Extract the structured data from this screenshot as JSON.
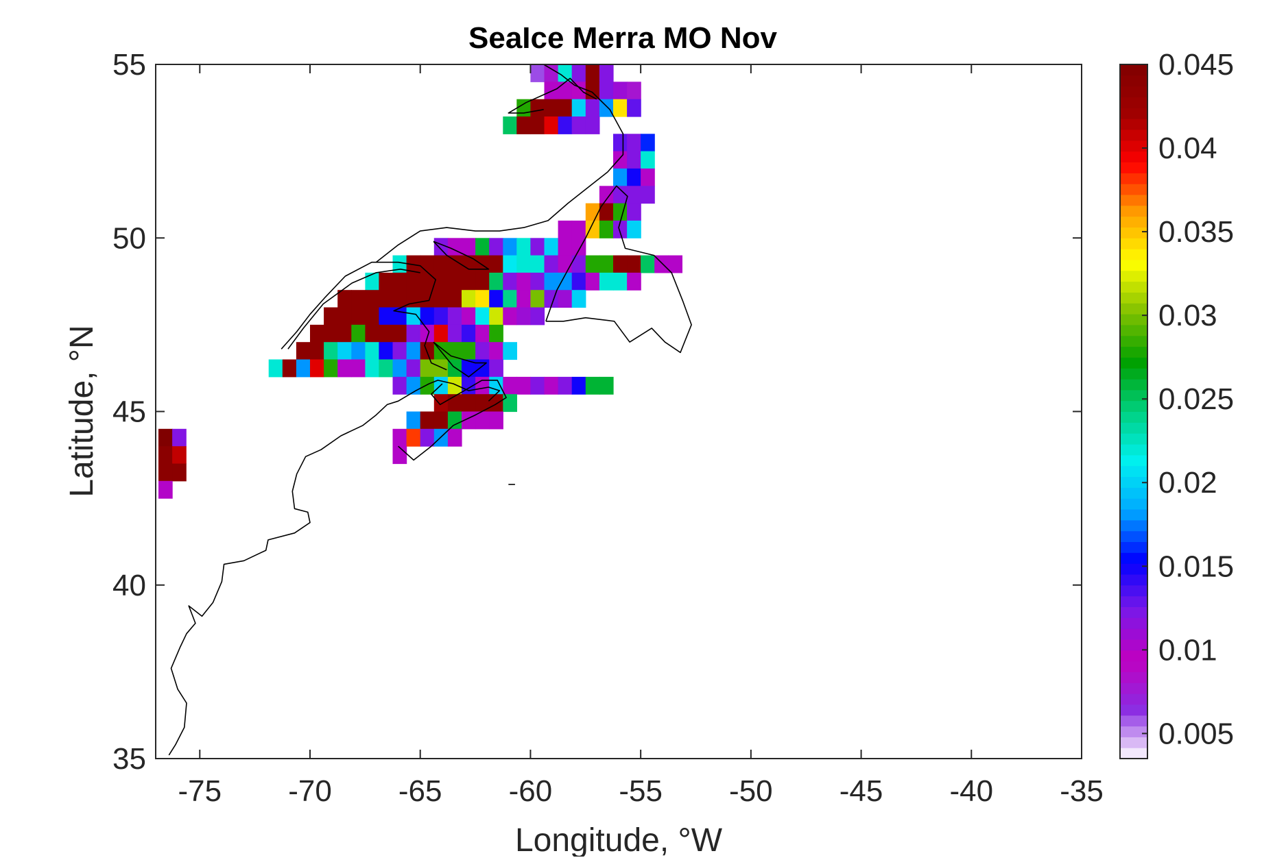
{
  "chart_data": {
    "type": "heatmap",
    "title": "SeaIce Merra MO Nov",
    "xlabel": "Longitude, °W",
    "ylabel": "Latitude, °N",
    "xlim": [
      -77,
      -35
    ],
    "ylim": [
      35,
      55
    ],
    "xticks": [
      -75,
      -70,
      -65,
      -60,
      -55,
      -50,
      -45,
      -40,
      -35
    ],
    "yticks": [
      35,
      40,
      45,
      50,
      55
    ],
    "colorbar": {
      "min": 0.0035,
      "max": 0.045,
      "ticks": [
        0.005,
        0.01,
        0.015,
        0.02,
        0.025,
        0.03,
        0.035,
        0.04,
        0.045
      ],
      "tick_labels": [
        "0.005",
        "0.01",
        "0.015",
        "0.02",
        "0.025",
        "0.03",
        "0.035",
        "0.04",
        "0.045"
      ],
      "colormap": [
        "#ffffff",
        "#8a2be2",
        "#c000c0",
        "#7a18e8",
        "#0000ff",
        "#00a8ff",
        "#00f0f0",
        "#00d080",
        "#00a000",
        "#80c000",
        "#ffff00",
        "#ffa000",
        "#ff0000",
        "#a00000",
        "#800000"
      ]
    },
    "cell_size_deg": [
      0.625,
      0.5
    ],
    "grid_cells_note": "rows: [lon_start, lat, [values...]] — each value occupies one 0.625° x 0.5° cell",
    "rows": [
      [
        -60.0,
        54.75,
        [
          0.006,
          0.008,
          0.022,
          0.012,
          0.044,
          0.012
        ]
      ],
      [
        -59.375,
        54.25,
        [
          0.01,
          0.01,
          0.009,
          0.044,
          0.012,
          0.011,
          0.008
        ]
      ],
      [
        -60.625,
        53.75,
        [
          0.028,
          0.044,
          0.044,
          0.044,
          0.02,
          0.012,
          0.018,
          0.034,
          0.013
        ]
      ],
      [
        -61.25,
        53.25,
        [
          0.025,
          0.044,
          0.044,
          0.04,
          0.014,
          0.012,
          0.012
        ]
      ],
      [
        -56.25,
        52.75,
        [
          0.013,
          0.012,
          0.016
        ]
      ],
      [
        -56.25,
        52.25,
        [
          0.01,
          0.012,
          0.022
        ]
      ],
      [
        -56.25,
        51.75,
        [
          0.018,
          0.015,
          0.01
        ]
      ],
      [
        -56.875,
        51.25,
        [
          0.01,
          0.012,
          0.012,
          0.012
        ]
      ],
      [
        -57.5,
        50.75,
        [
          0.036,
          0.044,
          0.028,
          0.012
        ]
      ],
      [
        -58.75,
        50.25,
        [
          0.01,
          0.01,
          0.035,
          0.028,
          0.012,
          0.02
        ]
      ],
      [
        -64.375,
        49.75,
        [
          0.012,
          0.01,
          0.01,
          0.026,
          0.012,
          0.018,
          0.022,
          0.012,
          0.02,
          0.01,
          0.01
        ]
      ],
      [
        -66.25,
        49.25,
        [
          0.022,
          0.044,
          0.044,
          0.044,
          0.044,
          0.044,
          0.044,
          0.044,
          0.021,
          0.022,
          0.022,
          0.012,
          0.01,
          0.012,
          0.028,
          0.028,
          0.044,
          0.044,
          0.025,
          0.01,
          0.01
        ]
      ],
      [
        -67.5,
        48.75,
        [
          0.022,
          0.044,
          0.044,
          0.044,
          0.044,
          0.044,
          0.044,
          0.044,
          0.044,
          0.025,
          0.012,
          0.01,
          0.012,
          0.018,
          0.018,
          0.014,
          0.01,
          0.022,
          0.022,
          0.01
        ]
      ],
      [
        -68.75,
        48.25,
        [
          0.044,
          0.044,
          0.044,
          0.044,
          0.044,
          0.044,
          0.044,
          0.044,
          0.044,
          0.032,
          0.034,
          0.015,
          0.024,
          0.01,
          0.03,
          0.012,
          0.011,
          0.02
        ]
      ],
      [
        -69.375,
        47.75,
        [
          0.044,
          0.044,
          0.044,
          0.044,
          0.015,
          0.015,
          0.02,
          0.015,
          0.014,
          0.012,
          0.01,
          0.021,
          0.032,
          0.01,
          0.011,
          0.012
        ]
      ],
      [
        -70.0,
        47.25,
        [
          0.044,
          0.044,
          0.044,
          0.028,
          0.044,
          0.044,
          0.044,
          0.012,
          0.01,
          0.04,
          0.012,
          0.014,
          0.01,
          0.028
        ]
      ],
      [
        -70.625,
        46.75,
        [
          0.044,
          0.044,
          0.024,
          0.02,
          0.018,
          0.022,
          0.015,
          0.012,
          0.018,
          0.044,
          0.028,
          0.028,
          0.028,
          0.012,
          0.01,
          0.02
        ]
      ],
      [
        -71.875,
        46.25,
        [
          0.022,
          0.044,
          0.018,
          0.04,
          0.028,
          0.01,
          0.01,
          0.022,
          0.024,
          0.018,
          0.012,
          0.03,
          0.03,
          0.026,
          0.015,
          0.015,
          0.012
        ]
      ],
      [
        -66.25,
        45.75,
        [
          0.012,
          0.018,
          0.028,
          0.02,
          0.032,
          0.014,
          0.01,
          0.02,
          0.01,
          0.01,
          0.012,
          0.01,
          0.012,
          0.015,
          0.026,
          0.026
        ]
      ],
      [
        -64.375,
        45.25,
        [
          0.042,
          0.044,
          0.044,
          0.044,
          0.044,
          0.025
        ]
      ],
      [
        -65.625,
        44.75,
        [
          0.018,
          0.044,
          0.044,
          0.026,
          0.01,
          0.01,
          0.01
        ]
      ],
      [
        -66.25,
        44.25,
        [
          0.01,
          0.038,
          0.012,
          0.018,
          0.01
        ]
      ],
      [
        -66.25,
        43.75,
        [
          0.01
        ]
      ],
      [
        -76.875,
        44.25,
        [
          0.045,
          0.012
        ]
      ],
      [
        -76.875,
        43.75,
        [
          0.044,
          0.041
        ]
      ],
      [
        -76.875,
        43.25,
        [
          0.044,
          0.044
        ]
      ],
      [
        -76.875,
        42.75,
        [
          0.01
        ]
      ]
    ]
  }
}
